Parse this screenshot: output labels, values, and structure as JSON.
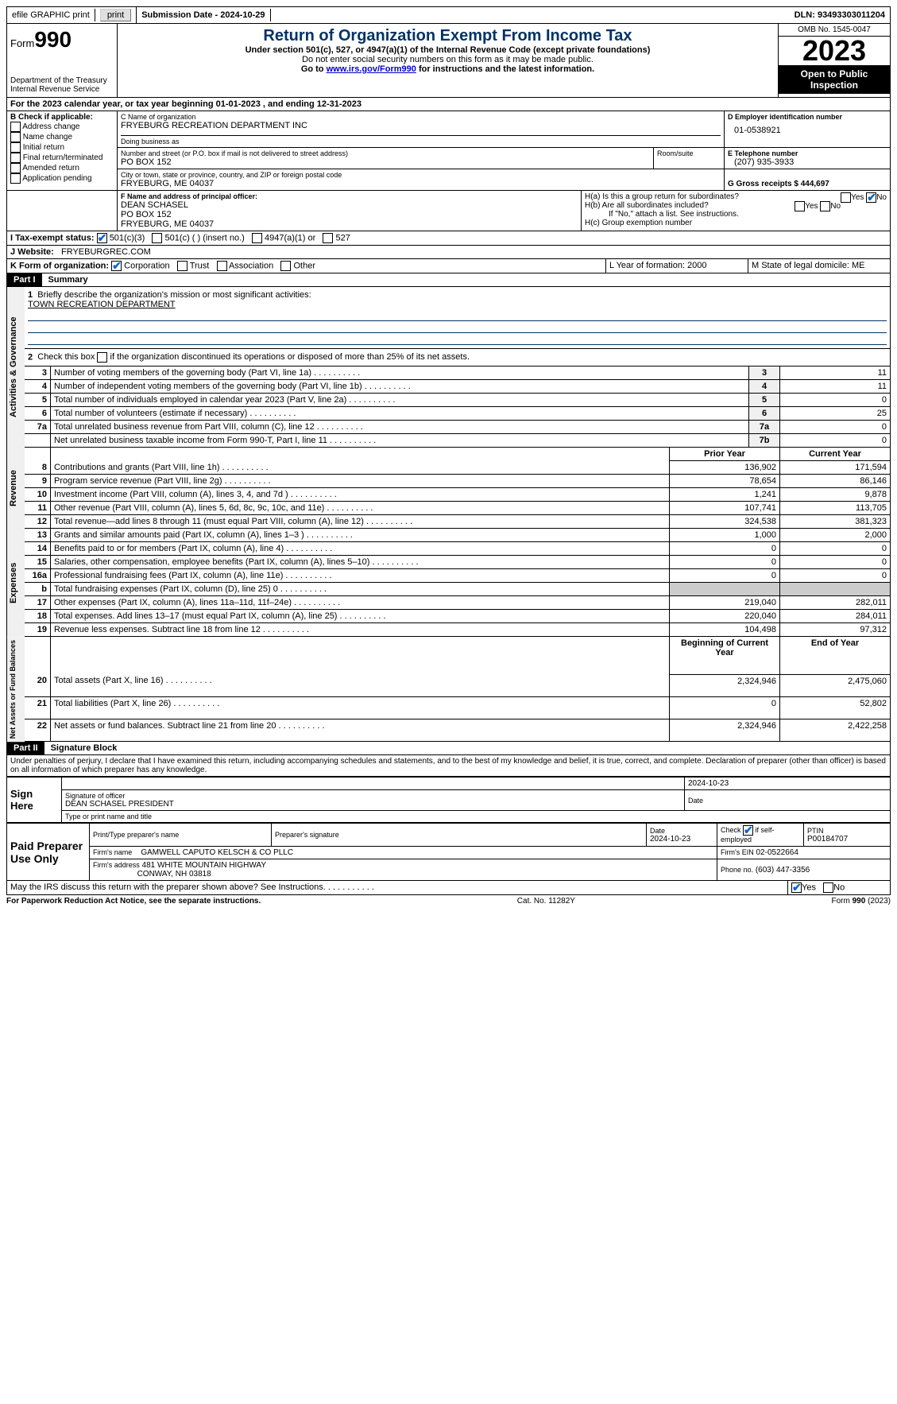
{
  "topbar": {
    "efile_label": "efile GRAPHIC print",
    "submission_label": "Submission Date - 2024-10-29",
    "dln_label": "DLN: 93493303011204"
  },
  "header": {
    "form_label": "Form",
    "form_num": "990",
    "dept": "Department of the Treasury Internal Revenue Service",
    "title": "Return of Organization Exempt From Income Tax",
    "sub1": "Under section 501(c), 527, or 4947(a)(1) of the Internal Revenue Code (except private foundations)",
    "sub2": "Do not enter social security numbers on this form as it may be made public.",
    "sub3_a": "Go to ",
    "sub3_link": "www.irs.gov/Form990",
    "sub3_b": " for instructions and the latest information.",
    "omb": "OMB No. 1545-0047",
    "year": "2023",
    "inspect": "Open to Public Inspection"
  },
  "lineA": "For the 2023 calendar year, or tax year beginning 01-01-2023   , and ending 12-31-2023",
  "boxB": {
    "title": "B Check if applicable:",
    "opts": [
      "Address change",
      "Name change",
      "Initial return",
      "Final return/terminated",
      "Amended return",
      "Application pending"
    ]
  },
  "boxC": {
    "name_lbl": "C Name of organization",
    "name": "FRYEBURG RECREATION DEPARTMENT INC",
    "dba_lbl": "Doing business as",
    "addr_lbl": "Number and street (or P.O. box if mail is not delivered to street address)",
    "addr": "PO BOX 152",
    "room_lbl": "Room/suite",
    "city_lbl": "City or town, state or province, country, and ZIP or foreign postal code",
    "city": "FRYEBURG, ME  04037"
  },
  "boxD": {
    "lbl": "D Employer identification number",
    "val": "01-0538921"
  },
  "boxE": {
    "lbl": "E Telephone number",
    "val": "(207) 935-3933"
  },
  "boxG": {
    "lbl": "G Gross receipts $ 444,697"
  },
  "boxF": {
    "lbl": "F  Name and address of principal officer:",
    "l1": "DEAN SCHASEL",
    "l2": "PO BOX 152",
    "l3": "FRYEBURG, ME  04037"
  },
  "boxH": {
    "a": "H(a)  Is this a group return for subordinates?",
    "b": "H(b)  Are all subordinates included?",
    "bnote": "If \"No,\" attach a list. See instructions.",
    "c": "H(c)  Group exemption number",
    "yes": "Yes",
    "no": "No"
  },
  "lineI": {
    "lbl": "I    Tax-exempt status:",
    "o1": "501(c)(3)",
    "o2": "501(c) (  ) (insert no.)",
    "o3": "4947(a)(1) or",
    "o4": "527"
  },
  "lineJ": {
    "lbl": "J    Website:",
    "val": "FRYEBURGREC.COM"
  },
  "lineK": {
    "lbl": "K Form of organization:",
    "o1": "Corporation",
    "o2": "Trust",
    "o3": "Association",
    "o4": "Other"
  },
  "lineL": "L Year of formation: 2000",
  "lineM": "M State of legal domicile: ME",
  "part1": {
    "hdr": "Part I",
    "title": "Summary",
    "q1": "Briefly describe the organization's mission or most significant activities:",
    "q1val": "TOWN RECREATION DEPARTMENT",
    "q2": "Check this box         if the organization discontinued its operations or disposed of more than 25% of its net assets.",
    "prior_hdr": "Prior Year",
    "curr_hdr": "Current Year",
    "bcy_hdr": "Beginning of Current Year",
    "eoy_hdr": "End of Year",
    "govRows": [
      {
        "n": "3",
        "d": "Number of voting members of the governing body (Part VI, line 1a)",
        "c": "3",
        "v": "11"
      },
      {
        "n": "4",
        "d": "Number of independent voting members of the governing body (Part VI, line 1b)",
        "c": "4",
        "v": "11"
      },
      {
        "n": "5",
        "d": "Total number of individuals employed in calendar year 2023 (Part V, line 2a)",
        "c": "5",
        "v": "0"
      },
      {
        "n": "6",
        "d": "Total number of volunteers (estimate if necessary)",
        "c": "6",
        "v": "25"
      },
      {
        "n": "7a",
        "d": "Total unrelated business revenue from Part VIII, column (C), line 12",
        "c": "7a",
        "v": "0"
      },
      {
        "n": "",
        "d": "Net unrelated business taxable income from Form 990-T, Part I, line 11",
        "c": "7b",
        "v": "0"
      }
    ],
    "revRows": [
      {
        "n": "8",
        "d": "Contributions and grants (Part VIII, line 1h)",
        "p": "136,902",
        "c": "171,594"
      },
      {
        "n": "9",
        "d": "Program service revenue (Part VIII, line 2g)",
        "p": "78,654",
        "c": "86,146"
      },
      {
        "n": "10",
        "d": "Investment income (Part VIII, column (A), lines 3, 4, and 7d )",
        "p": "1,241",
        "c": "9,878"
      },
      {
        "n": "11",
        "d": "Other revenue (Part VIII, column (A), lines 5, 6d, 8c, 9c, 10c, and 11e)",
        "p": "107,741",
        "c": "113,705"
      },
      {
        "n": "12",
        "d": "Total revenue—add lines 8 through 11 (must equal Part VIII, column (A), line 12)",
        "p": "324,538",
        "c": "381,323"
      }
    ],
    "expRows": [
      {
        "n": "13",
        "d": "Grants and similar amounts paid (Part IX, column (A), lines 1–3 )",
        "p": "1,000",
        "c": "2,000"
      },
      {
        "n": "14",
        "d": "Benefits paid to or for members (Part IX, column (A), line 4)",
        "p": "0",
        "c": "0"
      },
      {
        "n": "15",
        "d": "Salaries, other compensation, employee benefits (Part IX, column (A), lines 5–10)",
        "p": "0",
        "c": "0"
      },
      {
        "n": "16a",
        "d": "Professional fundraising fees (Part IX, column (A), line 11e)",
        "p": "0",
        "c": "0"
      },
      {
        "n": "b",
        "d": "Total fundraising expenses (Part IX, column (D), line 25) 0",
        "p": "GREY",
        "c": "GREY"
      },
      {
        "n": "17",
        "d": "Other expenses (Part IX, column (A), lines 11a–11d, 11f–24e)",
        "p": "219,040",
        "c": "282,011"
      },
      {
        "n": "18",
        "d": "Total expenses. Add lines 13–17 (must equal Part IX, column (A), line 25)",
        "p": "220,040",
        "c": "284,011"
      },
      {
        "n": "19",
        "d": "Revenue less expenses. Subtract line 18 from line 12",
        "p": "104,498",
        "c": "97,312"
      }
    ],
    "naRows": [
      {
        "n": "20",
        "d": "Total assets (Part X, line 16)",
        "p": "2,324,946",
        "c": "2,475,060"
      },
      {
        "n": "21",
        "d": "Total liabilities (Part X, line 26)",
        "p": "0",
        "c": "52,802"
      },
      {
        "n": "22",
        "d": "Net assets or fund balances. Subtract line 21 from line 20",
        "p": "2,324,946",
        "c": "2,422,258"
      }
    ]
  },
  "part2": {
    "hdr": "Part II",
    "title": "Signature Block",
    "decl": "Under penalties of perjury, I declare that I have examined this return, including accompanying schedules and statements, and to the best of my knowledge and belief, it is true, correct, and complete. Declaration of preparer (other than officer) is based on all information of which preparer has any knowledge.",
    "sign_here": "Sign Here",
    "sig_date": "2024-10-23",
    "sig_lbl": "Signature of officer",
    "sig_name": "DEAN SCHASEL PRESIDENT",
    "sig_typelbl": "Type or print name and title",
    "paid": "Paid Preparer Use Only",
    "prep_name_lbl": "Print/Type preparer's name",
    "prep_sig_lbl": "Preparer's signature",
    "prep_date_lbl": "Date",
    "prep_date": "2024-10-23",
    "prep_self_lbl": "Check         if self-employed",
    "ptin_lbl": "PTIN",
    "ptin": "P00184707",
    "firm_name_lbl": "Firm's name",
    "firm_name": "GAMWELL CAPUTO KELSCH & CO PLLC",
    "firm_ein_lbl": "Firm's EIN",
    "firm_ein": "02-0522664",
    "firm_addr_lbl": "Firm's address",
    "firm_addr1": "481 WHITE MOUNTAIN HIGHWAY",
    "firm_addr2": "CONWAY, NH  03818",
    "firm_phone_lbl": "Phone no.",
    "firm_phone": "(603) 447-3356",
    "discuss": "May the IRS discuss this return with the preparer shown above? See Instructions.",
    "yes": "Yes",
    "no": "No"
  },
  "footer": {
    "l": "For Paperwork Reduction Act Notice, see the separate instructions.",
    "m": "Cat. No. 11282Y",
    "r": "Form 990 (2023)"
  }
}
